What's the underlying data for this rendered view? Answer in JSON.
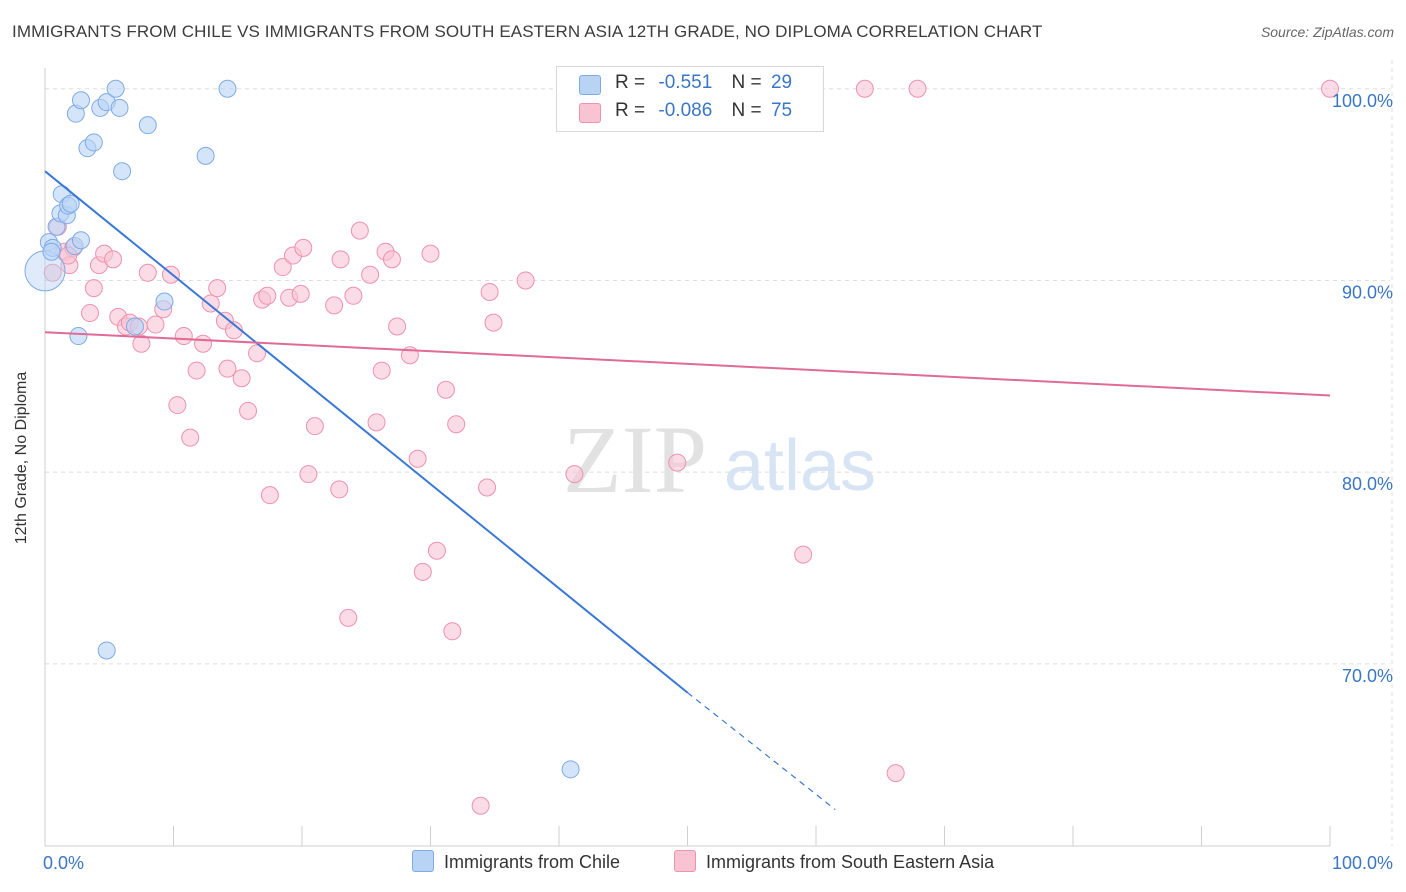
{
  "title": "IMMIGRANTS FROM CHILE VS IMMIGRANTS FROM SOUTH EASTERN ASIA 12TH GRADE, NO DIPLOMA CORRELATION CHART",
  "source": "Source: ZipAtlas.com",
  "watermark": {
    "zip": "ZIP",
    "atlas": "atlas"
  },
  "legend": {
    "r_label": "R =",
    "n_label": "N =",
    "series": [
      {
        "name": "Immigrants from Chile",
        "r": "-0.551",
        "n": "29"
      },
      {
        "name": "Immigrants from South Eastern Asia",
        "r": "-0.086",
        "n": "75"
      }
    ]
  },
  "colors": {
    "chile_fill": "#b9d3f5",
    "chile_stroke": "#7eaae6",
    "chile_line": "#3a78d6",
    "asia_fill": "#f8c3d3",
    "asia_stroke": "#ee92ae",
    "asia_line": "#e06b96",
    "axis_text": "#3a76c4",
    "grid": "#dddddd"
  },
  "chart_data": {
    "type": "scatter",
    "title": "IMMIGRANTS FROM CHILE VS IMMIGRANTS FROM SOUTH EASTERN ASIA 12TH GRADE, NO DIPLOMA CORRELATION CHART",
    "xlabel": "",
    "ylabel": "12th Grade, No Diploma",
    "xlim": [
      0,
      100
    ],
    "ylim": [
      60.5,
      101.5
    ],
    "x_tick_labels": [
      "0.0%",
      "100.0%"
    ],
    "y_ticks": [
      70,
      80,
      90,
      100
    ],
    "y_tick_labels": [
      "70.0%",
      "80.0%",
      "90.0%",
      "100.0%"
    ],
    "series": [
      {
        "name": "Immigrants from Chile",
        "points": [
          [
            0.0,
            90.5
          ],
          [
            0.3,
            92.0
          ],
          [
            0.6,
            91.7
          ],
          [
            0.9,
            92.8
          ],
          [
            1.2,
            93.5
          ],
          [
            1.3,
            94.5
          ],
          [
            1.7,
            93.4
          ],
          [
            1.8,
            93.9
          ],
          [
            2.0,
            94.0
          ],
          [
            2.3,
            91.8
          ],
          [
            2.8,
            92.1
          ],
          [
            2.4,
            98.7
          ],
          [
            2.8,
            99.4
          ],
          [
            3.3,
            96.9
          ],
          [
            3.8,
            97.2
          ],
          [
            4.3,
            99.0
          ],
          [
            4.8,
            99.3
          ],
          [
            5.5,
            100.0
          ],
          [
            5.8,
            99.0
          ],
          [
            6.0,
            95.7
          ],
          [
            8.0,
            98.1
          ],
          [
            12.5,
            96.5
          ],
          [
            14.2,
            100.0
          ],
          [
            2.6,
            87.1
          ],
          [
            7.0,
            87.6
          ],
          [
            9.3,
            88.9
          ],
          [
            4.8,
            70.7
          ],
          [
            40.9,
            64.5
          ],
          [
            0.5,
            91.5
          ]
        ],
        "trend": {
          "x0": 0.0,
          "y0": 95.7,
          "x1": 50.0,
          "y1": 68.5,
          "dashed_to_x": 61.5,
          "dashed_to_y": 62.4
        }
      },
      {
        "name": "Immigrants from South Eastern Asia",
        "points": [
          [
            0.6,
            90.4
          ],
          [
            1.0,
            92.8
          ],
          [
            1.5,
            91.5
          ],
          [
            1.9,
            90.8
          ],
          [
            2.2,
            91.7
          ],
          [
            3.5,
            88.3
          ],
          [
            3.8,
            89.6
          ],
          [
            4.2,
            90.8
          ],
          [
            4.6,
            91.4
          ],
          [
            5.3,
            91.1
          ],
          [
            5.7,
            88.1
          ],
          [
            6.3,
            87.6
          ],
          [
            6.6,
            87.8
          ],
          [
            7.5,
            86.7
          ],
          [
            8.0,
            90.4
          ],
          [
            8.6,
            87.7
          ],
          [
            9.2,
            88.5
          ],
          [
            9.8,
            90.3
          ],
          [
            10.3,
            83.5
          ],
          [
            10.8,
            87.1
          ],
          [
            11.3,
            81.8
          ],
          [
            11.8,
            85.3
          ],
          [
            12.3,
            86.7
          ],
          [
            12.9,
            88.8
          ],
          [
            13.4,
            89.6
          ],
          [
            14.0,
            87.9
          ],
          [
            14.2,
            85.4
          ],
          [
            14.7,
            87.4
          ],
          [
            15.3,
            84.9
          ],
          [
            15.8,
            83.2
          ],
          [
            16.5,
            86.2
          ],
          [
            16.9,
            89.0
          ],
          [
            17.3,
            89.2
          ],
          [
            17.5,
            78.8
          ],
          [
            18.5,
            90.7
          ],
          [
            19.0,
            89.1
          ],
          [
            19.3,
            91.3
          ],
          [
            19.9,
            89.3
          ],
          [
            20.1,
            91.7
          ],
          [
            20.5,
            79.9
          ],
          [
            21.0,
            82.4
          ],
          [
            22.5,
            88.7
          ],
          [
            22.9,
            79.1
          ],
          [
            23.0,
            91.1
          ],
          [
            23.6,
            72.4
          ],
          [
            24.0,
            89.2
          ],
          [
            24.5,
            92.6
          ],
          [
            25.3,
            90.3
          ],
          [
            25.8,
            82.6
          ],
          [
            26.2,
            85.3
          ],
          [
            26.5,
            91.5
          ],
          [
            27.0,
            91.1
          ],
          [
            27.4,
            87.6
          ],
          [
            28.4,
            86.1
          ],
          [
            29.0,
            80.7
          ],
          [
            29.4,
            74.8
          ],
          [
            30.0,
            91.4
          ],
          [
            30.5,
            75.9
          ],
          [
            31.2,
            84.3
          ],
          [
            31.7,
            71.7
          ],
          [
            32.0,
            82.5
          ],
          [
            33.9,
            62.6
          ],
          [
            34.4,
            79.2
          ],
          [
            34.6,
            89.4
          ],
          [
            34.9,
            87.8
          ],
          [
            37.4,
            90.0
          ],
          [
            41.2,
            79.9
          ],
          [
            49.2,
            80.5
          ],
          [
            59.0,
            75.7
          ],
          [
            63.8,
            100.0
          ],
          [
            66.2,
            64.3
          ],
          [
            67.9,
            100.0
          ],
          [
            100.0,
            100.0
          ],
          [
            1.8,
            91.3
          ],
          [
            7.3,
            87.6
          ]
        ],
        "trend": {
          "x0": 0.0,
          "y0": 87.3,
          "x1": 100.0,
          "y1": 84.0
        }
      }
    ]
  }
}
